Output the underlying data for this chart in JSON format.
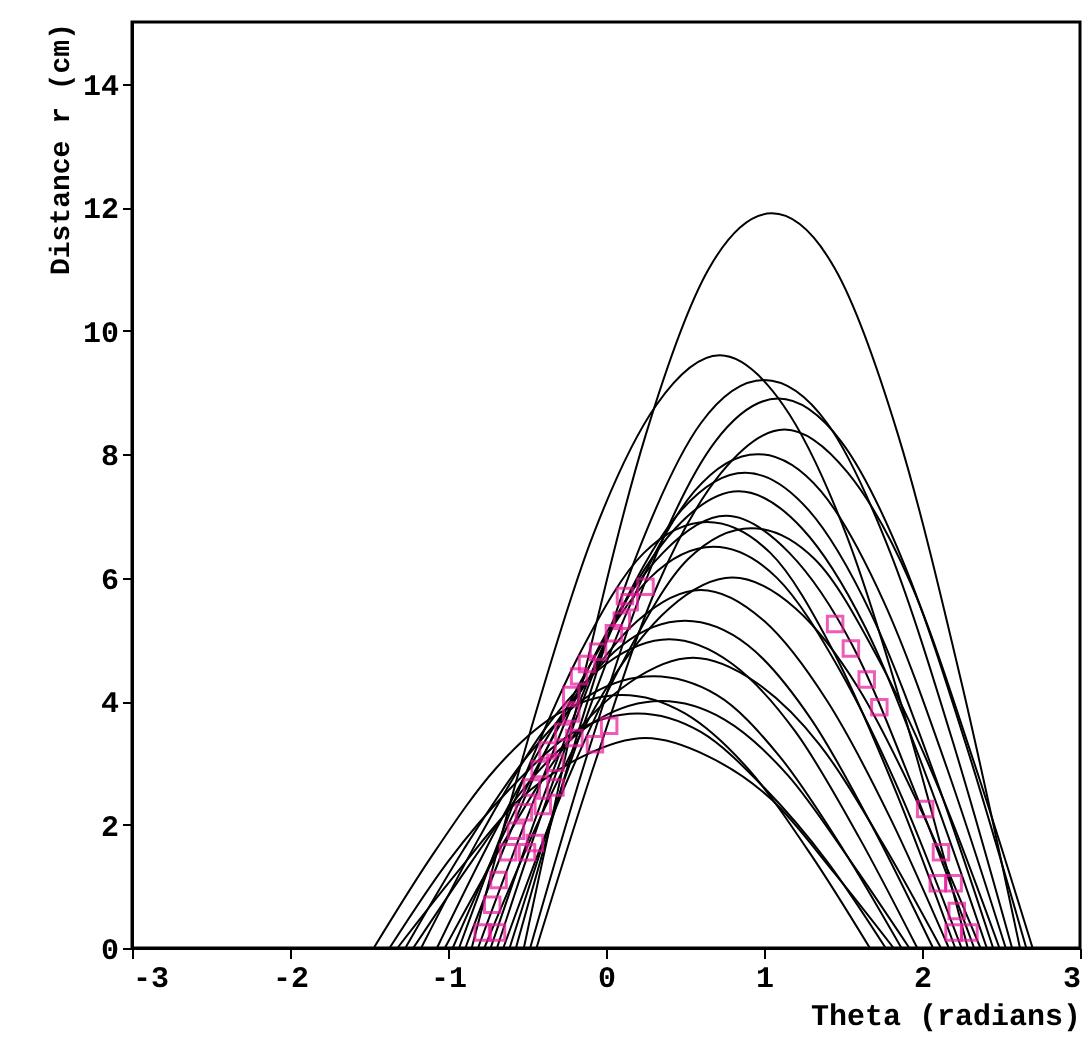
{
  "chart_data": {
    "type": "line",
    "xlabel": "Theta (radians)",
    "ylabel": "Distance r (cm)",
    "xlim": [
      -3,
      3
    ],
    "ylim": [
      0,
      15
    ],
    "xticks": [
      -3,
      -2,
      -1,
      0,
      1,
      2,
      3
    ],
    "yticks": [
      0,
      2,
      4,
      6,
      8,
      10,
      12,
      14
    ],
    "line_style": "solid",
    "series": [
      {
        "color": "#000000",
        "x": [
          -0.52,
          -0.15,
          0.25,
          0.65,
          1.05,
          1.45,
          1.85,
          2.25,
          2.62
        ],
        "values": [
          0,
          4.3,
          8.3,
          11.0,
          11.9,
          11.0,
          8.3,
          4.3,
          0
        ]
      },
      {
        "color": "#000000",
        "x": [
          -0.85,
          -0.48,
          -0.08,
          0.32,
          0.72,
          1.12,
          1.52,
          1.92,
          2.29
        ],
        "values": [
          0,
          3.5,
          6.7,
          8.8,
          9.6,
          8.8,
          6.7,
          3.5,
          0
        ]
      },
      {
        "color": "#000000",
        "x": [
          -0.57,
          -0.2,
          0.2,
          0.6,
          1.0,
          1.4,
          1.8,
          2.2,
          2.57
        ],
        "values": [
          0,
          3.3,
          6.4,
          8.5,
          9.2,
          8.5,
          6.4,
          3.3,
          0
        ]
      },
      {
        "color": "#000000",
        "x": [
          -0.48,
          -0.11,
          0.29,
          0.69,
          1.09,
          1.49,
          1.89,
          2.29,
          2.66
        ],
        "values": [
          0,
          3.2,
          6.2,
          8.2,
          8.9,
          8.2,
          6.2,
          3.2,
          0
        ]
      },
      {
        "color": "#000000",
        "x": [
          -0.44,
          -0.07,
          0.33,
          0.73,
          1.13,
          1.53,
          1.93,
          2.33,
          2.7
        ],
        "values": [
          0,
          3.0,
          5.9,
          7.7,
          8.4,
          7.7,
          5.9,
          3.0,
          0
        ]
      },
      {
        "color": "#000000",
        "x": [
          -0.61,
          -0.24,
          0.16,
          0.56,
          0.96,
          1.36,
          1.76,
          2.16,
          2.53
        ],
        "values": [
          0,
          2.9,
          5.6,
          7.4,
          8.0,
          7.4,
          5.6,
          2.9,
          0
        ]
      },
      {
        "color": "#000000",
        "x": [
          -0.69,
          -0.32,
          0.08,
          0.48,
          0.88,
          1.28,
          1.68,
          2.08,
          2.45
        ],
        "values": [
          0,
          2.8,
          5.4,
          7.1,
          7.7,
          7.1,
          5.4,
          2.8,
          0
        ]
      },
      {
        "color": "#000000",
        "x": [
          -0.73,
          -0.36,
          0.04,
          0.44,
          0.84,
          1.24,
          1.64,
          2.04,
          2.41
        ],
        "values": [
          0,
          2.7,
          5.2,
          6.8,
          7.4,
          6.8,
          5.2,
          2.7,
          0
        ]
      },
      {
        "color": "#000000",
        "x": [
          -0.81,
          -0.44,
          -0.04,
          0.36,
          0.76,
          1.16,
          1.56,
          1.96,
          2.33
        ],
        "values": [
          0,
          2.5,
          4.9,
          6.4,
          7.0,
          6.4,
          4.9,
          2.5,
          0
        ]
      },
      {
        "color": "#000000",
        "x": [
          -0.93,
          -0.56,
          -0.16,
          0.24,
          0.64,
          1.04,
          1.44,
          1.84,
          2.21
        ],
        "values": [
          0,
          2.5,
          4.8,
          6.4,
          6.9,
          6.4,
          4.8,
          2.5,
          0
        ]
      },
      {
        "color": "#000000",
        "x": [
          -0.65,
          -0.28,
          0.12,
          0.52,
          0.92,
          1.32,
          1.72,
          2.12,
          2.49
        ],
        "values": [
          0,
          2.5,
          4.7,
          6.3,
          6.8,
          6.3,
          4.7,
          2.5,
          0
        ]
      },
      {
        "color": "#000000",
        "x": [
          -0.89,
          -0.52,
          -0.12,
          0.28,
          0.68,
          1.08,
          1.48,
          1.88,
          2.25
        ],
        "values": [
          0,
          2.4,
          4.5,
          6.0,
          6.5,
          6.0,
          4.5,
          2.4,
          0
        ]
      },
      {
        "color": "#000000",
        "x": [
          -0.77,
          -0.4,
          0,
          0.4,
          0.8,
          1.2,
          1.6,
          2.0,
          2.37
        ],
        "values": [
          0,
          2.2,
          4.2,
          5.5,
          6.0,
          5.5,
          4.2,
          2.2,
          0
        ]
      },
      {
        "color": "#000000",
        "x": [
          -0.97,
          -0.6,
          -0.2,
          0.2,
          0.6,
          1.0,
          1.4,
          1.8,
          2.17
        ],
        "values": [
          0,
          2.1,
          4.0,
          5.3,
          5.8,
          5.3,
          4.0,
          2.1,
          0
        ]
      },
      {
        "color": "#000000",
        "x": [
          -1.07,
          -0.7,
          -0.3,
          0.1,
          0.5,
          0.9,
          1.3,
          1.7,
          2.07
        ],
        "values": [
          0,
          1.9,
          3.7,
          4.9,
          5.3,
          4.9,
          3.7,
          1.9,
          0
        ]
      },
      {
        "color": "#000000",
        "x": [
          -1.17,
          -0.8,
          -0.4,
          0,
          0.4,
          0.8,
          1.2,
          1.6,
          1.97
        ],
        "values": [
          0,
          1.8,
          3.5,
          4.6,
          5.0,
          4.6,
          3.5,
          1.8,
          0
        ]
      },
      {
        "color": "#000000",
        "x": [
          -1.02,
          -0.65,
          -0.25,
          0.15,
          0.55,
          0.95,
          1.35,
          1.75,
          2.12
        ],
        "values": [
          0,
          1.7,
          3.3,
          4.3,
          4.7,
          4.3,
          3.3,
          1.7,
          0
        ]
      },
      {
        "color": "#000000",
        "x": [
          -1.27,
          -0.9,
          -0.5,
          -0.1,
          0.3,
          0.7,
          1.1,
          1.5,
          1.87
        ],
        "values": [
          0,
          1.6,
          3.1,
          4.1,
          4.4,
          4.1,
          3.1,
          1.6,
          0
        ]
      },
      {
        "color": "#000000",
        "x": [
          -1.47,
          -1.1,
          -0.7,
          -0.3,
          0.1,
          0.5,
          0.9,
          1.3,
          1.67
        ],
        "values": [
          0,
          1.5,
          2.9,
          3.8,
          4.1,
          3.8,
          2.9,
          1.5,
          0
        ]
      },
      {
        "color": "#000000",
        "x": [
          -1.22,
          -0.85,
          -0.45,
          -0.05,
          0.35,
          0.75,
          1.15,
          1.55,
          1.92
        ],
        "values": [
          0,
          1.4,
          2.8,
          3.7,
          4.0,
          3.7,
          2.8,
          1.4,
          0
        ]
      },
      {
        "color": "#000000",
        "x": [
          -1.37,
          -1.0,
          -0.6,
          -0.2,
          0.2,
          0.6,
          1.0,
          1.4,
          1.77
        ],
        "values": [
          0,
          1.4,
          2.6,
          3.5,
          3.8,
          3.5,
          2.6,
          1.4,
          0
        ]
      },
      {
        "color": "#000000",
        "x": [
          -1.32,
          -0.95,
          -0.55,
          -0.15,
          0.25,
          0.65,
          1.05,
          1.45,
          1.82
        ],
        "values": [
          0,
          1.2,
          2.4,
          3.1,
          3.4,
          3.1,
          2.4,
          1.2,
          0
        ]
      },
      {
        "type": "scatter",
        "marker": "square",
        "color": "#e8189a",
        "x": [
          -0.78,
          -0.69,
          -0.72,
          -0.68,
          -0.62,
          -0.57,
          -0.52,
          -0.5,
          -0.45,
          -0.47,
          -0.42,
          -0.4,
          -0.37,
          -0.32,
          -0.32,
          -0.27,
          -0.22,
          -0.22,
          -0.17,
          -0.2,
          -0.12,
          -0.07,
          -0.05,
          0.02,
          0.05,
          0.1,
          0.15,
          0.25,
          0.12,
          1.45,
          1.55,
          1.65,
          1.73,
          2.02,
          2.12,
          2.1,
          2.2,
          2.22,
          2.2,
          2.3
        ],
        "values": [
          0.25,
          0.25,
          0.7,
          1.1,
          1.55,
          1.9,
          2.2,
          1.55,
          1.7,
          2.6,
          2.9,
          2.3,
          3.2,
          3.0,
          2.6,
          3.5,
          3.8,
          4.1,
          4.4,
          3.4,
          4.6,
          3.3,
          4.8,
          3.6,
          5.1,
          5.3,
          5.6,
          5.85,
          5.7,
          5.25,
          4.85,
          4.35,
          3.9,
          2.25,
          1.55,
          1.05,
          1.05,
          0.6,
          0.25,
          0.25
        ]
      }
    ]
  }
}
